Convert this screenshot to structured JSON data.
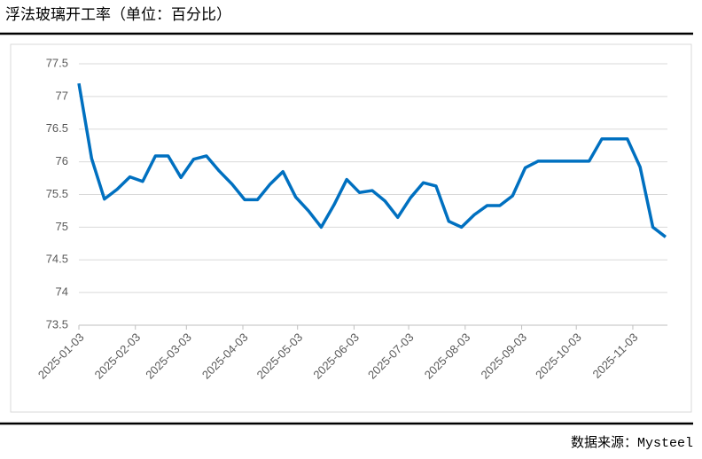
{
  "chart_data": {
    "type": "line",
    "title": "浮法玻璃开工率（单位：百分比）",
    "source": "数据来源：Mysteel",
    "x": [
      "2025-01-03",
      "2025-01-10",
      "2025-01-17",
      "2025-01-24",
      "2025-01-31",
      "2025-02-07",
      "2025-02-14",
      "2025-02-21",
      "2025-02-28",
      "2025-03-07",
      "2025-03-14",
      "2025-03-21",
      "2025-03-28",
      "2025-04-04",
      "2025-04-11",
      "2025-04-18",
      "2025-04-25",
      "2025-05-02",
      "2025-05-09",
      "2025-05-16",
      "2025-05-23",
      "2025-05-30",
      "2025-06-06",
      "2025-06-13",
      "2025-06-20",
      "2025-06-27",
      "2025-07-04",
      "2025-07-11",
      "2025-07-18",
      "2025-07-25",
      "2025-08-01",
      "2025-08-08",
      "2025-08-15",
      "2025-08-22",
      "2025-08-29",
      "2025-09-05",
      "2025-09-12",
      "2025-09-19",
      "2025-09-26",
      "2025-10-03",
      "2025-10-10",
      "2025-10-17",
      "2025-10-24",
      "2025-10-31",
      "2025-11-07",
      "2025-11-14",
      "2025-11-21"
    ],
    "series": [
      {
        "color": "#0070c0",
        "values": [
          77.2,
          76.05,
          75.43,
          75.58,
          75.77,
          75.7,
          76.09,
          76.09,
          75.76,
          76.04,
          76.09,
          75.86,
          75.66,
          75.42,
          75.42,
          75.66,
          75.85,
          75.46,
          75.25,
          75.0,
          75.34,
          75.73,
          75.53,
          75.56,
          75.4,
          75.15,
          75.45,
          75.68,
          75.63,
          75.09,
          75.0,
          75.19,
          75.33,
          75.33,
          75.48,
          75.91,
          76.01,
          76.01,
          76.01,
          76.01,
          76.01,
          76.35,
          76.35,
          76.35,
          75.92,
          75.0,
          74.85
        ]
      }
    ],
    "xlim": [
      "2025-01-03",
      "2025-11-22"
    ],
    "xticks": [
      "2025-01-03",
      "2025-02-03",
      "2025-03-03",
      "2025-04-03",
      "2025-05-03",
      "2025-06-03",
      "2025-07-03",
      "2025-08-03",
      "2025-09-03",
      "2025-10-03",
      "2025-11-03"
    ],
    "ylim": [
      73.5,
      77.5
    ],
    "yticks": [
      73.5,
      74,
      74.5,
      75,
      75.5,
      76,
      76.5,
      77,
      77.5
    ],
    "grid": true
  }
}
